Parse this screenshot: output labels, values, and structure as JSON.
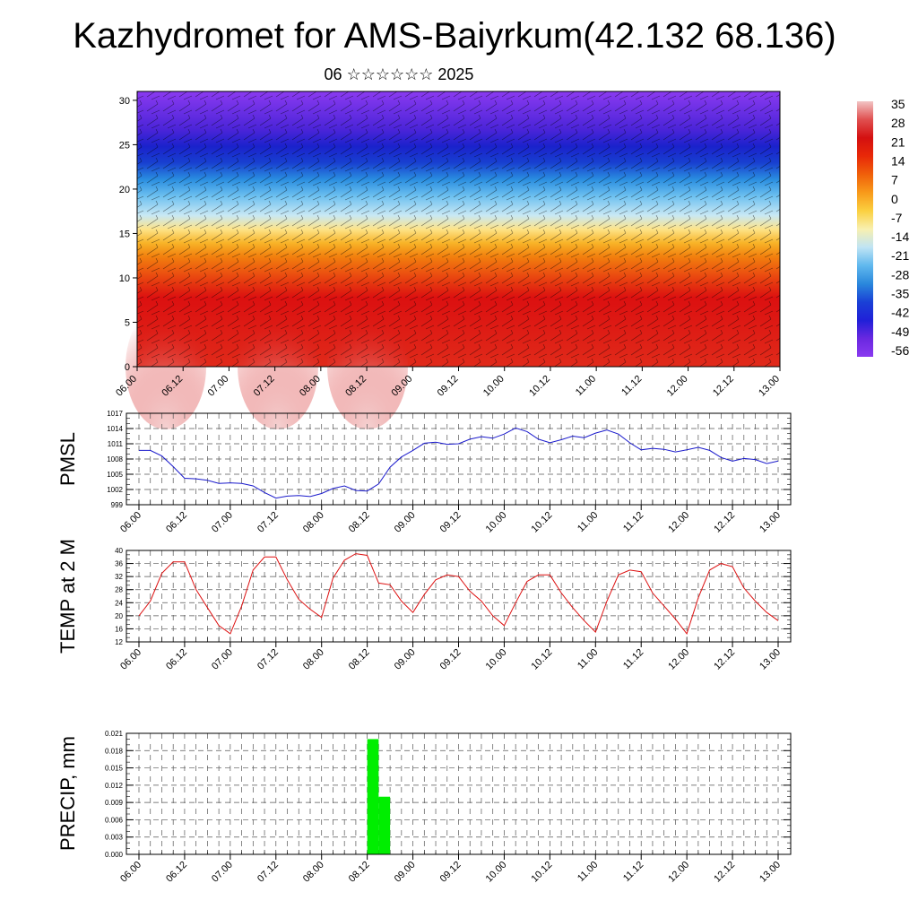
{
  "page": {
    "title": "Kazhydromet for AMS-Baiyrkum(42.132 68.136)",
    "subtitle": "06 ☆☆☆☆☆☆ 2025"
  },
  "colors": {
    "pmsl_line": "#1a1acc",
    "temp_line": "#dd1111",
    "precip_bar": "#00ee00",
    "grid": "#555555"
  },
  "chart_data": [
    {
      "type": "heatmap",
      "name": "cross-section",
      "y_ticks": [
        0,
        5,
        10,
        15,
        20,
        25,
        30
      ],
      "ylim": [
        0,
        31
      ],
      "x_ticks": [
        "06.00",
        "06.12",
        "07.00",
        "07.12",
        "08.00",
        "08.12",
        "09.00",
        "09.12",
        "10.00",
        "10.12",
        "11.00",
        "11.12",
        "12.00",
        "12.12",
        "13.00"
      ],
      "colorbar_ticks": [
        "35",
        "28",
        "21",
        "14",
        "7",
        "0",
        "-7",
        "-14",
        "-21",
        "-28",
        "-35",
        "-42",
        "-49",
        "-56"
      ],
      "colorbar_colors": [
        "#f2c4c4",
        "#e05050",
        "#d41010",
        "#e82808",
        "#f0600a",
        "#f89a1a",
        "#fbd040",
        "#f8f0b0",
        "#c0e4f4",
        "#60b8ee",
        "#2a88dc",
        "#1a40d6",
        "#2020d8",
        "#6a28e0",
        "#8a3af0"
      ]
    },
    {
      "type": "line",
      "name": "PMSL",
      "ylabel": "PMSL",
      "y_ticks": [
        999,
        1002,
        1005,
        1008,
        1011,
        1014,
        1017
      ],
      "ylim": [
        999,
        1017
      ],
      "x_ticks": [
        "06.00",
        "06.12",
        "07.00",
        "07.12",
        "08.00",
        "08.12",
        "09.00",
        "09.12",
        "10.00",
        "10.12",
        "11.00",
        "11.12",
        "12.00",
        "12.12",
        "13.00"
      ],
      "values": [
        1009.7,
        1009.7,
        1008.6,
        1006.5,
        1004.2,
        1004.1,
        1003.8,
        1003.2,
        1003.3,
        1003.2,
        1002.7,
        1001.4,
        1000.3,
        1000.7,
        1000.8,
        1000.6,
        1001.2,
        1002.2,
        1002.7,
        1001.8,
        1001.7,
        1003.1,
        1006.4,
        1008.4,
        1009.7,
        1011.1,
        1011.3,
        1010.9,
        1011.0,
        1011.9,
        1012.4,
        1012.1,
        1012.9,
        1014.1,
        1013.4,
        1011.9,
        1011.2,
        1011.8,
        1012.5,
        1012.2,
        1013.1,
        1013.7,
        1012.9,
        1011.2,
        1009.8,
        1010.1,
        1009.9,
        1009.4,
        1009.8,
        1010.3,
        1009.7,
        1008.3,
        1007.6,
        1008.1,
        1007.9,
        1007.1,
        1007.6
      ],
      "x_start": 0,
      "x_step": 3
    },
    {
      "type": "line",
      "name": "TEMP at 2 M",
      "ylabel": "TEMP at 2 M",
      "y_ticks": [
        12,
        16,
        20,
        24,
        28,
        32,
        36,
        40
      ],
      "ylim": [
        12,
        40
      ],
      "x_ticks": [
        "06.00",
        "06.12",
        "07.00",
        "07.12",
        "08.00",
        "08.12",
        "09.00",
        "09.12",
        "10.00",
        "10.12",
        "11.00",
        "11.12",
        "12.00",
        "12.12",
        "13.00"
      ],
      "values": [
        20,
        24.5,
        33,
        36.5,
        36.5,
        28,
        22.5,
        17,
        14.5,
        23,
        34,
        38,
        38,
        31,
        25,
        22,
        19.5,
        31.5,
        37,
        39,
        38.5,
        30,
        29.5,
        24.5,
        21,
        26.5,
        31,
        32.5,
        32,
        27.5,
        24.5,
        20,
        17,
        24,
        30.5,
        32.5,
        32.5,
        27,
        22.5,
        18.5,
        15,
        24.5,
        32.5,
        34,
        33.5,
        27,
        23,
        19,
        14.5,
        25.5,
        34,
        36,
        35,
        28.5,
        24.5,
        21,
        18.5
      ],
      "x_start": 0,
      "x_step": 3
    },
    {
      "type": "bar",
      "name": "PRECIP, mm",
      "ylabel": "PRECIP, mm",
      "y_ticks": [
        "0.000",
        "0.003",
        "0.006",
        "0.009",
        "0.012",
        "0.015",
        "0.018",
        "0.021"
      ],
      "ylim": [
        0,
        0.021
      ],
      "x_ticks": [
        "06.00",
        "06.12",
        "07.00",
        "07.12",
        "08.00",
        "08.12",
        "09.00",
        "09.12",
        "10.00",
        "10.12",
        "11.00",
        "11.12",
        "12.00",
        "12.12",
        "13.00"
      ],
      "bars": [
        {
          "hour": 63,
          "value": 0.02
        },
        {
          "hour": 66,
          "value": 0.01
        }
      ]
    }
  ]
}
